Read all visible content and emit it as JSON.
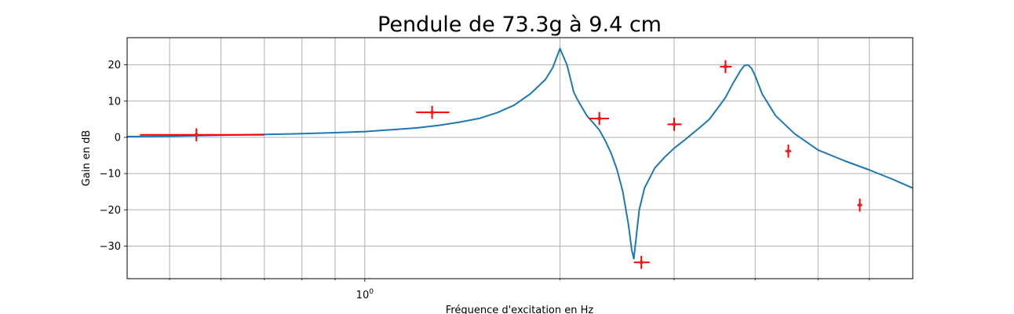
{
  "chart_data": {
    "type": "line",
    "title": "Pendule de 73.3g à 9.4 cm",
    "xlabel": "Fréquence d'excitation en Hz",
    "ylabel": "Gain en dB",
    "xscale": "log",
    "xlim": [
      0.43,
      7.0
    ],
    "ylim": [
      -39,
      27.5
    ],
    "grid": true,
    "x_major_tick_labels": [
      {
        "value": 1.0,
        "base": "10",
        "exponent": "0"
      }
    ],
    "x_minor_ticks": [
      0.5,
      0.6,
      0.7,
      0.8,
      0.9,
      2,
      3,
      4,
      5,
      6
    ],
    "y_ticks": [
      20,
      10,
      0,
      -10,
      -20,
      -30
    ],
    "y_tick_labels": [
      "20",
      "10",
      "0",
      "−10",
      "−20",
      "−30"
    ],
    "colors": {
      "model": "#1f77b4",
      "measure": "#d62728",
      "measure_errorbar": "#ff0000"
    },
    "model_curve": {
      "x": [
        0.43,
        0.5,
        0.6,
        0.7,
        0.8,
        0.9,
        1.0,
        1.1,
        1.2,
        1.3,
        1.4,
        1.5,
        1.6,
        1.7,
        1.8,
        1.9,
        1.95,
        2.0,
        2.05,
        2.08,
        2.1,
        2.12,
        2.15,
        2.2,
        2.25,
        2.3,
        2.35,
        2.4,
        2.45,
        2.5,
        2.55,
        2.58,
        2.6,
        2.62,
        2.65,
        2.7,
        2.8,
        2.9,
        3.0,
        3.1,
        3.2,
        3.3,
        3.4,
        3.5,
        3.6,
        3.7,
        3.8,
        3.85,
        3.9,
        3.95,
        4.0,
        4.1,
        4.3,
        4.6,
        5.0,
        5.5,
        6.0,
        6.5,
        7.0
      ],
      "y": [
        0.2,
        0.3,
        0.6,
        0.8,
        1.0,
        1.3,
        1.6,
        2.1,
        2.6,
        3.3,
        4.2,
        5.2,
        6.8,
        8.9,
        12.0,
        16.0,
        19.3,
        24.5,
        20.0,
        15.5,
        12.5,
        11.0,
        9.0,
        6.0,
        4.0,
        2.0,
        -1.0,
        -4.5,
        -9.0,
        -15.0,
        -24.0,
        -31.0,
        -33.5,
        -28.0,
        -20.0,
        -14.0,
        -8.5,
        -5.5,
        -3.0,
        -1.0,
        1.0,
        3.0,
        5.0,
        8.0,
        11.0,
        15.0,
        18.5,
        19.8,
        20.0,
        19.0,
        17.0,
        12.0,
        6.0,
        1.0,
        -3.5,
        -6.5,
        -9.0,
        -11.5,
        -14.0
      ]
    },
    "measurements": [
      {
        "x": 0.55,
        "y": 0.7,
        "x_low": 0.45,
        "x_high": 0.7,
        "y_err": 1.8
      },
      {
        "x": 1.27,
        "y": 6.9,
        "x_low": 1.2,
        "x_high": 1.35,
        "y_err": 1.8
      },
      {
        "x": 2.3,
        "y": 5.2,
        "x_low": 2.22,
        "x_high": 2.38,
        "y_err": 1.8
      },
      {
        "x": 2.67,
        "y": -34.5,
        "x_low": 2.6,
        "x_high": 2.75,
        "y_err": 1.8
      },
      {
        "x": 3.0,
        "y": 3.6,
        "x_low": 2.93,
        "x_high": 3.08,
        "y_err": 1.8
      },
      {
        "x": 3.6,
        "y": 19.5,
        "x_low": 3.53,
        "x_high": 3.68,
        "y_err": 1.8
      },
      {
        "x": 4.5,
        "y": -3.8,
        "x_low": 4.45,
        "x_high": 4.55,
        "y_err": 1.8
      },
      {
        "x": 5.8,
        "y": -18.7,
        "x_low": 5.75,
        "x_high": 5.85,
        "y_err": 1.8
      }
    ]
  }
}
